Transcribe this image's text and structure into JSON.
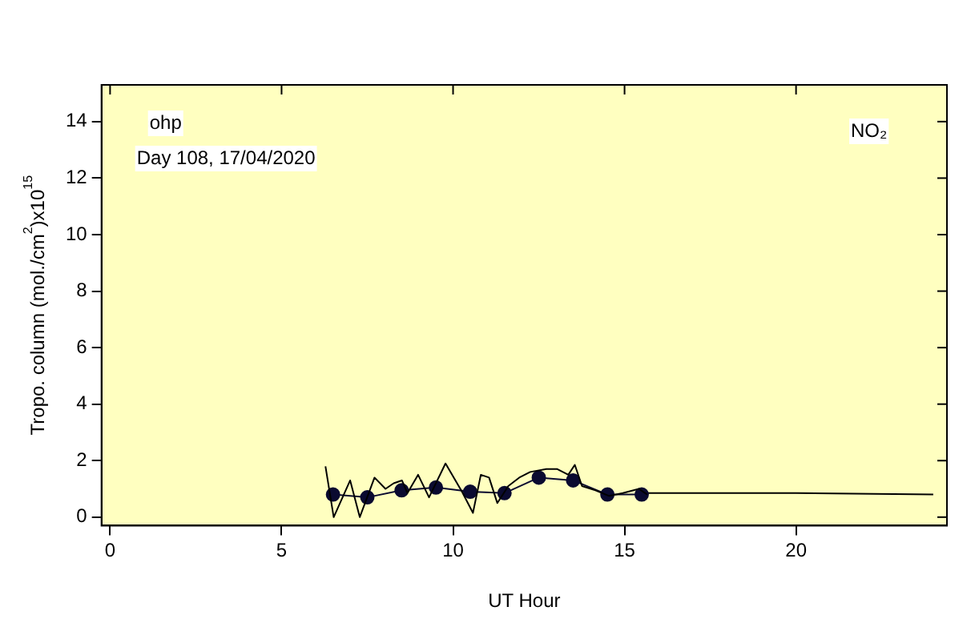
{
  "chart_data": {
    "type": "line",
    "xlabel": "UT Hour",
    "ylabel": "Tropo. column (mol./cm$^{2}$)x10$^{15}$",
    "annotations": [
      "ohp",
      "Day 108, 17/04/2020",
      "NO₂"
    ],
    "xlim": [
      -0.25,
      24.4
    ],
    "xticks": [
      0,
      5,
      10,
      15,
      20
    ],
    "ylim": [
      -0.3,
      15.3
    ],
    "yticks": [
      0,
      2,
      4,
      6,
      8,
      10,
      12,
      14
    ],
    "grid": false,
    "legend": false,
    "series": [
      {
        "color": "#000000",
        "marker": "none",
        "x": [
          6.28,
          6.52,
          7.0,
          7.28,
          7.71,
          8.03,
          8.27,
          8.51,
          8.67,
          8.98,
          9.3,
          9.78,
          10.26,
          10.58,
          10.81,
          11.05,
          11.29,
          11.61,
          11.93,
          12.25,
          12.72,
          13.04,
          13.36,
          13.55,
          13.76,
          14.15,
          14.55,
          14.95,
          15.42,
          15.66
        ],
        "values": [
          1.8,
          0.0,
          1.3,
          0.0,
          1.4,
          1.0,
          1.2,
          1.3,
          0.85,
          1.5,
          0.7,
          1.9,
          0.9,
          0.15,
          1.5,
          1.4,
          0.5,
          1.1,
          1.4,
          1.6,
          1.7,
          1.7,
          1.5,
          1.85,
          1.1,
          0.95,
          0.75,
          0.85,
          1.0,
          0.8
        ]
      },
      {
        "color": "#0a0a30",
        "marker": "circle",
        "x": [
          6.5,
          7.5,
          8.5,
          9.5,
          10.5,
          11.5,
          12.5,
          13.5,
          14.5,
          15.5
        ],
        "values": [
          0.8,
          0.7,
          0.95,
          1.05,
          0.9,
          0.85,
          1.4,
          1.3,
          0.8,
          0.8
        ]
      },
      {
        "color": "#000000",
        "marker": "none",
        "x": [
          15.5,
          20,
          24
        ],
        "values": [
          0.85,
          0.85,
          0.8
        ]
      }
    ]
  }
}
